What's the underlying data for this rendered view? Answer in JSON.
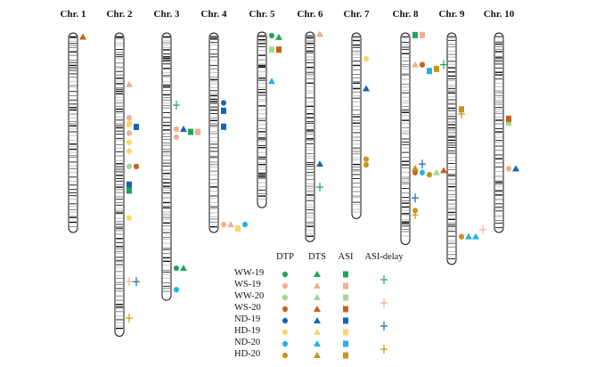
{
  "figure": {
    "type": "chromosome map with QTL markers",
    "traits": [
      {
        "key": "DTP",
        "label": "DTP",
        "shape": "ellipse"
      },
      {
        "key": "DTS",
        "label": "DTS",
        "shape": "triangle"
      },
      {
        "key": "ASI",
        "label": "ASI",
        "shape": "rect"
      },
      {
        "key": "ASI_delay",
        "label": "ASI-delay",
        "shape": "cross"
      }
    ],
    "environments": [
      {
        "key": "WW-19",
        "label": "WW-19",
        "color": "#1fa55a"
      },
      {
        "key": "WS-19",
        "label": "WS-19",
        "color": "#efb08e"
      },
      {
        "key": "WW-20",
        "label": "WW-20",
        "color": "#a6d58f"
      },
      {
        "key": "WS-20",
        "label": "WS-20",
        "color": "#c4621c"
      },
      {
        "key": "ND-19",
        "label": "ND-19",
        "color": "#1565b0"
      },
      {
        "key": "HD-19",
        "label": "HD-19",
        "color": "#f9d66a"
      },
      {
        "key": "ND-20",
        "label": "ND-20",
        "color": "#1fb4e8"
      },
      {
        "key": "HD-20",
        "label": "HD-20",
        "color": "#c4961c"
      }
    ],
    "asi_delay_legend": [
      "WW",
      "WS",
      "ND",
      "HD"
    ],
    "asi_delay_colors": {
      "WW": "#1fa55a",
      "WS": "#efb08e",
      "ND": "#1565b0",
      "HD": "#c4961c"
    },
    "chromosomes": [
      {
        "label": "Chr. 1",
        "relative_length": 1.0,
        "markers": [
          {
            "pos": 0.02,
            "trait": "DTS",
            "env": "WS-20"
          }
        ]
      },
      {
        "label": "Chr. 2",
        "relative_length": 1.52,
        "markers": [
          {
            "pos": 0.17,
            "trait": "DTS",
            "env": "WS-19"
          },
          {
            "pos": 0.28,
            "trait": "DTP",
            "env": "WS-19"
          },
          {
            "pos": 0.3,
            "trait": "ASI",
            "env": "HD-19"
          },
          {
            "pos": 0.31,
            "trait": "ASI",
            "env": "ND-19"
          },
          {
            "pos": 0.33,
            "trait": "DTP",
            "env": "WS-19"
          },
          {
            "pos": 0.36,
            "trait": "DTP",
            "env": "HD-19"
          },
          {
            "pos": 0.39,
            "trait": "DTP",
            "env": "HD-19"
          },
          {
            "pos": 0.44,
            "trait": "DTP",
            "env": "WW-20"
          },
          {
            "pos": 0.44,
            "trait": "DTP",
            "env": "WS-20"
          },
          {
            "pos": 0.5,
            "trait": "ASI",
            "env": "ND-19"
          },
          {
            "pos": 0.52,
            "trait": "ASI",
            "env": "WW-19"
          },
          {
            "pos": 0.61,
            "trait": "DTP",
            "env": "HD-19"
          },
          {
            "pos": 0.82,
            "trait": "ASI_delay",
            "env": "WS-19"
          },
          {
            "pos": 0.82,
            "trait": "ASI_delay",
            "env": "ND-19"
          },
          {
            "pos": 0.94,
            "trait": "ASI_delay",
            "env": "HD-20"
          }
        ]
      },
      {
        "label": "Chr. 3",
        "relative_length": 1.34,
        "markers": [
          {
            "pos": 0.27,
            "trait": "ASI_delay",
            "env": "WW-19"
          },
          {
            "pos": 0.36,
            "trait": "DTP",
            "env": "WS-19"
          },
          {
            "pos": 0.36,
            "trait": "DTS",
            "env": "ND-19"
          },
          {
            "pos": 0.37,
            "trait": "ASI",
            "env": "WW-19"
          },
          {
            "pos": 0.37,
            "trait": "ASI",
            "env": "WS-19"
          },
          {
            "pos": 0.39,
            "trait": "DTP",
            "env": "WS-19"
          },
          {
            "pos": 0.88,
            "trait": "DTP",
            "env": "WW-19"
          },
          {
            "pos": 0.88,
            "trait": "DTS",
            "env": "WW-19"
          },
          {
            "pos": 0.96,
            "trait": "DTP",
            "env": "ND-20"
          }
        ]
      },
      {
        "label": "Chr. 4",
        "relative_length": 1.0,
        "markers": [
          {
            "pos": 0.35,
            "trait": "DTP",
            "env": "ND-19"
          },
          {
            "pos": 0.39,
            "trait": "ASI",
            "env": "ND-19"
          },
          {
            "pos": 0.47,
            "trait": "ASI",
            "env": "ND-19"
          },
          {
            "pos": 0.96,
            "trait": "DTP",
            "env": "WS-19"
          },
          {
            "pos": 0.96,
            "trait": "DTS",
            "env": "WS-19"
          },
          {
            "pos": 0.98,
            "trait": "ASI",
            "env": "HD-19"
          },
          {
            "pos": 0.96,
            "trait": "DTP",
            "env": "ND-20"
          }
        ]
      },
      {
        "label": "Chr. 5",
        "relative_length": 0.88,
        "markers": [
          {
            "pos": 0.02,
            "trait": "DTP",
            "env": "WW-19"
          },
          {
            "pos": 0.03,
            "trait": "DTS",
            "env": "WW-19"
          },
          {
            "pos": 0.1,
            "trait": "ASI",
            "env": "WW-20"
          },
          {
            "pos": 0.1,
            "trait": "ASI",
            "env": "WS-20"
          },
          {
            "pos": 0.28,
            "trait": "DTS",
            "env": "ND-20"
          }
        ]
      },
      {
        "label": "Chr. 6",
        "relative_length": 1.05,
        "markers": [
          {
            "pos": 0.01,
            "trait": "DTS",
            "env": "WS-19"
          },
          {
            "pos": 0.63,
            "trait": "DTS",
            "env": "ND-19"
          },
          {
            "pos": 0.74,
            "trait": "ASI_delay",
            "env": "WW-19"
          }
        ]
      },
      {
        "label": "Chr. 7",
        "relative_length": 0.93,
        "markers": [
          {
            "pos": 0.14,
            "trait": "DTP",
            "env": "HD-19"
          },
          {
            "pos": 0.3,
            "trait": "DTS",
            "env": "ND-19"
          },
          {
            "pos": 0.68,
            "trait": "DTP",
            "env": "HD-20"
          },
          {
            "pos": 0.71,
            "trait": "DTP",
            "env": "HD-20"
          }
        ]
      },
      {
        "label": "Chr. 8",
        "relative_length": 1.06,
        "markers": [
          {
            "pos": 0.01,
            "trait": "ASI",
            "env": "WW-19"
          },
          {
            "pos": 0.01,
            "trait": "ASI",
            "env": "WS-19"
          },
          {
            "pos": 0.15,
            "trait": "DTS",
            "env": "WS-19"
          },
          {
            "pos": 0.15,
            "trait": "DTP",
            "env": "WS-20"
          },
          {
            "pos": 0.18,
            "trait": "ASI",
            "env": "ND-20"
          },
          {
            "pos": 0.17,
            "trait": "ASI",
            "env": "HD-20"
          },
          {
            "pos": 0.15,
            "trait": "ASI_delay",
            "env": "WW-19"
          },
          {
            "pos": 0.66,
            "trait": "DTP",
            "env": "WS-20"
          },
          {
            "pos": 0.66,
            "trait": "DTP",
            "env": "ND-20"
          },
          {
            "pos": 0.67,
            "trait": "DTP",
            "env": "HD-20"
          },
          {
            "pos": 0.66,
            "trait": "DTS",
            "env": "WW-20"
          },
          {
            "pos": 0.65,
            "trait": "DTS",
            "env": "WS-20"
          },
          {
            "pos": 0.64,
            "trait": "DTS",
            "env": "HD-20"
          },
          {
            "pos": 0.62,
            "trait": "ASI_delay",
            "env": "ND-19"
          },
          {
            "pos": 0.78,
            "trait": "ASI_delay",
            "env": "ND-19"
          },
          {
            "pos": 0.84,
            "trait": "DTP",
            "env": "HD-20"
          },
          {
            "pos": 0.86,
            "trait": "ASI_delay",
            "env": "HD-20"
          }
        ]
      },
      {
        "label": "Chr. 9",
        "relative_length": 1.16,
        "markers": [
          {
            "pos": 0.33,
            "trait": "ASI",
            "env": "HD-20"
          },
          {
            "pos": 0.35,
            "trait": "ASI_delay",
            "env": "HD-20"
          },
          {
            "pos": 0.88,
            "trait": "DTP",
            "env": "HD-20"
          },
          {
            "pos": 0.88,
            "trait": "DTS",
            "env": "ND-20"
          },
          {
            "pos": 0.88,
            "trait": "DTS",
            "env": "ND-20"
          },
          {
            "pos": 0.85,
            "trait": "ASI_delay",
            "env": "WS-19"
          }
        ]
      },
      {
        "label": "Chr. 10",
        "relative_length": 1.0,
        "markers": [
          {
            "pos": 0.45,
            "trait": "ASI",
            "env": "WW-20"
          },
          {
            "pos": 0.43,
            "trait": "ASI",
            "env": "WS-20"
          },
          {
            "pos": 0.68,
            "trait": "DTP",
            "env": "WS-19"
          },
          {
            "pos": 0.68,
            "trait": "DTS",
            "env": "ND-19"
          }
        ]
      }
    ]
  }
}
